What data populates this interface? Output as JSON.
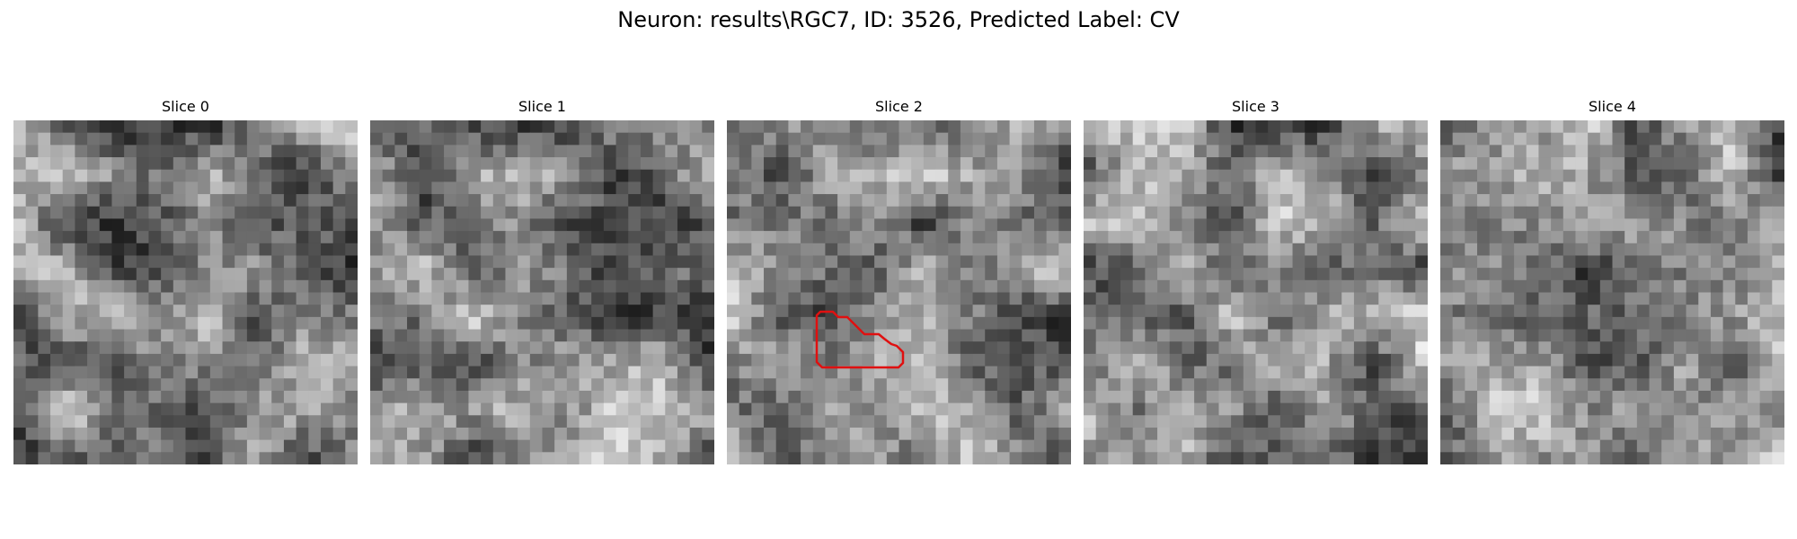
{
  "figure": {
    "suptitle": "Neuron: results\\RGC7, ID: 3526, Predicted Label: CV",
    "colormap": "grayscale",
    "outline_color": "#e01010"
  },
  "slices": [
    {
      "title": "Slice 0",
      "seed": 11
    },
    {
      "title": "Slice 1",
      "seed": 23
    },
    {
      "title": "Slice 2",
      "seed": 37,
      "has_outline": true
    },
    {
      "title": "Slice 3",
      "seed": 41
    },
    {
      "title": "Slice 4",
      "seed": 59
    }
  ]
}
